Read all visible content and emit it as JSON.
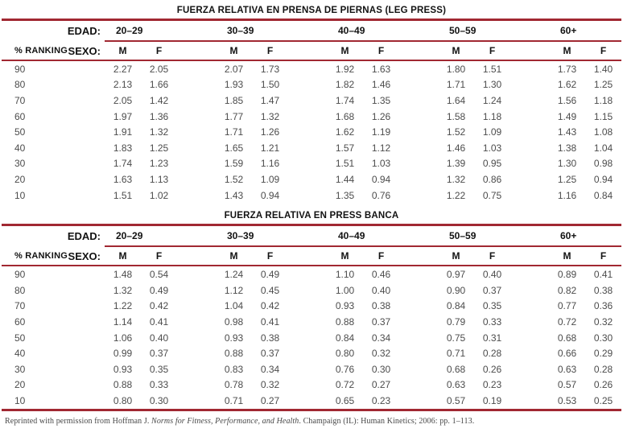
{
  "colors": {
    "rule_red": "#a12832"
  },
  "tables": [
    {
      "title": "FUERZA RELATIVA EN PRENSA DE PIERNAS (LEG PRESS)",
      "edad_label": "EDAD:",
      "sexo_label": "SEXO:",
      "ranking_label": "% RANKING",
      "age_groups": [
        "20–29",
        "30–39",
        "40–49",
        "50–59",
        "60+"
      ],
      "sex_headers": [
        "M",
        "F"
      ],
      "rows": [
        {
          "rank": "90",
          "values": [
            "2.27",
            "2.05",
            "2.07",
            "1.73",
            "1.92",
            "1.63",
            "1.80",
            "1.51",
            "1.73",
            "1.40"
          ]
        },
        {
          "rank": "80",
          "values": [
            "2.13",
            "1.66",
            "1.93",
            "1.50",
            "1.82",
            "1.46",
            "1.71",
            "1.30",
            "1.62",
            "1.25"
          ]
        },
        {
          "rank": "70",
          "values": [
            "2.05",
            "1.42",
            "1.85",
            "1.47",
            "1.74",
            "1.35",
            "1.64",
            "1.24",
            "1.56",
            "1.18"
          ]
        },
        {
          "rank": "60",
          "values": [
            "1.97",
            "1.36",
            "1.77",
            "1.32",
            "1.68",
            "1.26",
            "1.58",
            "1.18",
            "1.49",
            "1.15"
          ]
        },
        {
          "rank": "50",
          "values": [
            "1.91",
            "1.32",
            "1.71",
            "1.26",
            "1.62",
            "1.19",
            "1.52",
            "1.09",
            "1.43",
            "1.08"
          ]
        },
        {
          "rank": "40",
          "values": [
            "1.83",
            "1.25",
            "1.65",
            "1.21",
            "1.57",
            "1.12",
            "1.46",
            "1.03",
            "1.38",
            "1.04"
          ]
        },
        {
          "rank": "30",
          "values": [
            "1.74",
            "1.23",
            "1.59",
            "1.16",
            "1.51",
            "1.03",
            "1.39",
            "0.95",
            "1.30",
            "0.98"
          ]
        },
        {
          "rank": "20",
          "values": [
            "1.63",
            "1.13",
            "1.52",
            "1.09",
            "1.44",
            "0.94",
            "1.32",
            "0.86",
            "1.25",
            "0.94"
          ]
        },
        {
          "rank": "10",
          "values": [
            "1.51",
            "1.02",
            "1.43",
            "0.94",
            "1.35",
            "0.76",
            "1.22",
            "0.75",
            "1.16",
            "0.84"
          ]
        }
      ]
    },
    {
      "title": "FUERZA RELATIVA EN PRESS BANCA",
      "edad_label": "EDAD:",
      "sexo_label": "SEXO:",
      "ranking_label": "% RANKING",
      "age_groups": [
        "20–29",
        "30–39",
        "40–49",
        "50–59",
        "60+"
      ],
      "sex_headers": [
        "M",
        "F"
      ],
      "rows": [
        {
          "rank": "90",
          "values": [
            "1.48",
            "0.54",
            "1.24",
            "0.49",
            "1.10",
            "0.46",
            "0.97",
            "0.40",
            "0.89",
            "0.41"
          ]
        },
        {
          "rank": "80",
          "values": [
            "1.32",
            "0.49",
            "1.12",
            "0.45",
            "1.00",
            "0.40",
            "0.90",
            "0.37",
            "0.82",
            "0.38"
          ]
        },
        {
          "rank": "70",
          "values": [
            "1.22",
            "0.42",
            "1.04",
            "0.42",
            "0.93",
            "0.38",
            "0.84",
            "0.35",
            "0.77",
            "0.36"
          ]
        },
        {
          "rank": "60",
          "values": [
            "1.14",
            "0.41",
            "0.98",
            "0.41",
            "0.88",
            "0.37",
            "0.79",
            "0.33",
            "0.72",
            "0.32"
          ]
        },
        {
          "rank": "50",
          "values": [
            "1.06",
            "0.40",
            "0.93",
            "0.38",
            "0.84",
            "0.34",
            "0.75",
            "0.31",
            "0.68",
            "0.30"
          ]
        },
        {
          "rank": "40",
          "values": [
            "0.99",
            "0.37",
            "0.88",
            "0.37",
            "0.80",
            "0.32",
            "0.71",
            "0.28",
            "0.66",
            "0.29"
          ]
        },
        {
          "rank": "30",
          "values": [
            "0.93",
            "0.35",
            "0.83",
            "0.34",
            "0.76",
            "0.30",
            "0.68",
            "0.26",
            "0.63",
            "0.28"
          ]
        },
        {
          "rank": "20",
          "values": [
            "0.88",
            "0.33",
            "0.78",
            "0.32",
            "0.72",
            "0.27",
            "0.63",
            "0.23",
            "0.57",
            "0.26"
          ]
        },
        {
          "rank": "10",
          "values": [
            "0.80",
            "0.30",
            "0.71",
            "0.27",
            "0.65",
            "0.23",
            "0.57",
            "0.19",
            "0.53",
            "0.25"
          ]
        }
      ]
    }
  ],
  "footer": {
    "prefix": "Reprinted with permission from Hoffman J. ",
    "book_title": "Norms for Fitness, Performance, and Health",
    "suffix": ". Champaign (IL): Human Kinetics; 2006: pp. 1–113."
  }
}
